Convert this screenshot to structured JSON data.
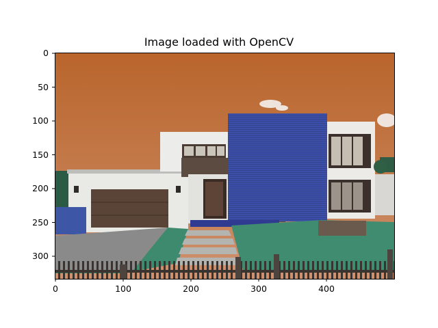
{
  "figure": {
    "title": "Image loaded with OpenCV",
    "image_alt": "House photo rendered with BGR channel order (orange sky, blue facade, teal lawn)",
    "y_axis": {
      "ticks": [
        "0",
        "50",
        "100",
        "150",
        "200",
        "250",
        "300"
      ]
    },
    "x_axis": {
      "ticks": [
        "0",
        "100",
        "200",
        "300",
        "400"
      ]
    },
    "colors": {
      "sky": "#c9875f",
      "wall_white": "#e9e9e6",
      "panel_blue": "#3d4ea5",
      "brown_cladding": "#5a4a40",
      "lawn_teal": "#3e8a6f",
      "driveway_gray": "#8a8a8a"
    }
  }
}
